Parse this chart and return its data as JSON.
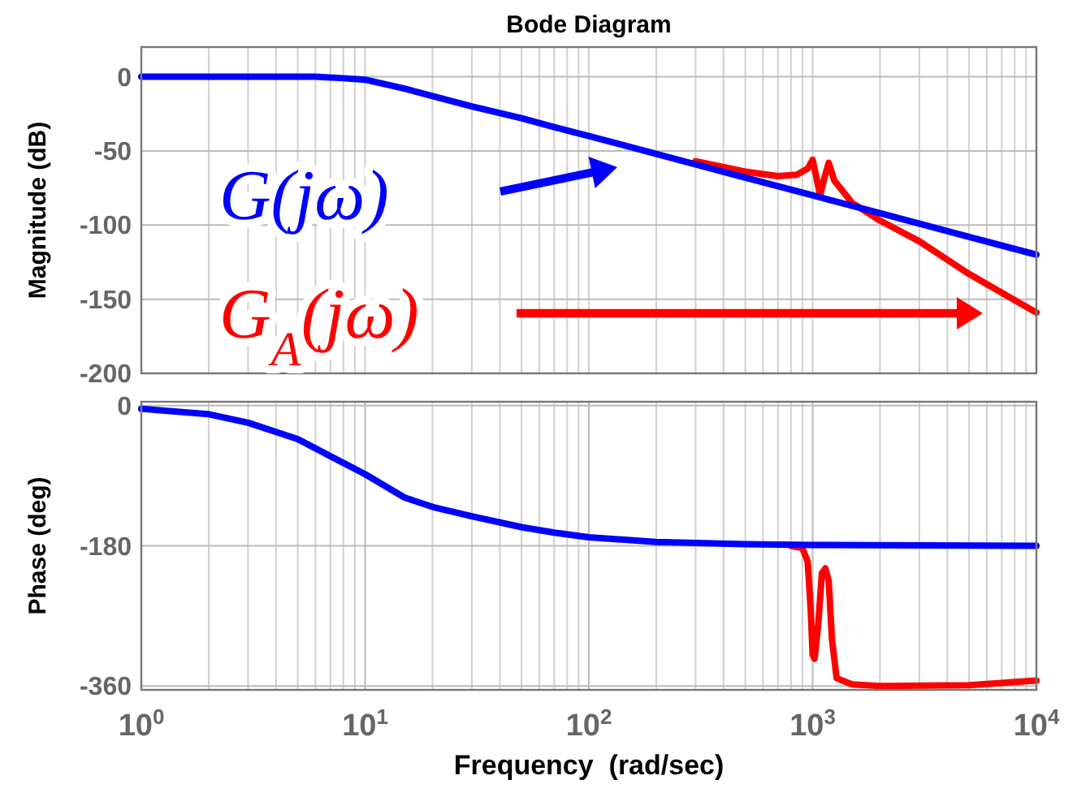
{
  "chart_data": [
    {
      "type": "line",
      "title": "Bode Diagram",
      "ylabel": "Magnitude (dB)",
      "xlim": [
        1,
        10000
      ],
      "ylim": [
        -200,
        20
      ],
      "log": "x",
      "grid": true,
      "tick_labels": "y",
      "yticks": [
        0,
        -50,
        -100,
        -150,
        -200
      ],
      "xticks": [
        {
          "value": 1,
          "label": null
        },
        {
          "value": 2,
          "label": null
        },
        {
          "value": 3,
          "label": null
        },
        {
          "value": 4,
          "label": null
        },
        {
          "value": 5,
          "label": null
        },
        {
          "value": 6,
          "label": null
        },
        {
          "value": 7,
          "label": null
        },
        {
          "value": 8,
          "label": null
        },
        {
          "value": 9,
          "label": null
        },
        {
          "value": 10,
          "label": null
        },
        {
          "value": 20,
          "label": null
        },
        {
          "value": 30,
          "label": null
        },
        {
          "value": 40,
          "label": null
        },
        {
          "value": 50,
          "label": null
        },
        {
          "value": 60,
          "label": null
        },
        {
          "value": 70,
          "label": null
        },
        {
          "value": 80,
          "label": null
        },
        {
          "value": 90,
          "label": null
        },
        {
          "value": 100,
          "label": null
        },
        {
          "value": 200,
          "label": null
        },
        {
          "value": 300,
          "label": null
        },
        {
          "value": 400,
          "label": null
        },
        {
          "value": 500,
          "label": null
        },
        {
          "value": 600,
          "label": null
        },
        {
          "value": 700,
          "label": null
        },
        {
          "value": 800,
          "label": null
        },
        {
          "value": 900,
          "label": null
        },
        {
          "value": 1000,
          "label": null
        },
        {
          "value": 2000,
          "label": null
        },
        {
          "value": 3000,
          "label": null
        },
        {
          "value": 4000,
          "label": null
        },
        {
          "value": 5000,
          "label": null
        },
        {
          "value": 6000,
          "label": null
        },
        {
          "value": 7000,
          "label": null
        },
        {
          "value": 8000,
          "label": null
        },
        {
          "value": 9000,
          "label": null
        },
        {
          "value": 10000,
          "label": null
        }
      ],
      "series": [
        {
          "color": "#0000ff",
          "x": [
            1,
            2,
            4,
            6,
            8,
            10,
            15,
            20,
            30,
            50,
            70,
            100,
            200,
            500,
            1000,
            2000,
            5000,
            10000
          ],
          "values": [
            0,
            0,
            0,
            0,
            -1,
            -2,
            -8,
            -13,
            -20,
            -28,
            -34,
            -40,
            -52,
            -68,
            -80,
            -92,
            -108,
            -120
          ]
        },
        {
          "color": "#ff0000",
          "x": [
            300,
            500,
            700,
            850,
            950,
            1000,
            1040,
            1080,
            1130,
            1180,
            1250,
            1500,
            2000,
            3000,
            5000,
            10000
          ],
          "values": [
            -57,
            -64,
            -67,
            -66,
            -62,
            -56,
            -68,
            -80,
            -68,
            -58,
            -70,
            -85,
            -97,
            -111,
            -133,
            -159
          ]
        }
      ],
      "annotations": [
        "G(jω)",
        "G$_{A}$(jω)"
      ]
    },
    {
      "type": "line",
      "xlabel": "Frequency  (rad/sec)",
      "ylabel": "Phase (deg)",
      "xlim": [
        1,
        10000
      ],
      "ylim": [
        -365,
        5
      ],
      "log": "x",
      "grid": true,
      "yticks": [
        0,
        -180,
        -360
      ],
      "xticks": [
        {
          "value": 1,
          "label": "10$^{0}$"
        },
        {
          "value": 2,
          "label": null
        },
        {
          "value": 3,
          "label": null
        },
        {
          "value": 4,
          "label": null
        },
        {
          "value": 5,
          "label": null
        },
        {
          "value": 6,
          "label": null
        },
        {
          "value": 7,
          "label": null
        },
        {
          "value": 8,
          "label": null
        },
        {
          "value": 9,
          "label": null
        },
        {
          "value": 10,
          "label": "10$^{1}$"
        },
        {
          "value": 20,
          "label": null
        },
        {
          "value": 30,
          "label": null
        },
        {
          "value": 40,
          "label": null
        },
        {
          "value": 50,
          "label": null
        },
        {
          "value": 60,
          "label": null
        },
        {
          "value": 70,
          "label": null
        },
        {
          "value": 80,
          "label": null
        },
        {
          "value": 90,
          "label": null
        },
        {
          "value": 100,
          "label": "10$^{2}$"
        },
        {
          "value": 200,
          "label": null
        },
        {
          "value": 300,
          "label": null
        },
        {
          "value": 400,
          "label": null
        },
        {
          "value": 500,
          "label": null
        },
        {
          "value": 600,
          "label": null
        },
        {
          "value": 700,
          "label": null
        },
        {
          "value": 800,
          "label": null
        },
        {
          "value": 900,
          "label": null
        },
        {
          "value": 1000,
          "label": "10$^{3}$"
        },
        {
          "value": 2000,
          "label": null
        },
        {
          "value": 3000,
          "label": null
        },
        {
          "value": 4000,
          "label": null
        },
        {
          "value": 5000,
          "label": null
        },
        {
          "value": 6000,
          "label": null
        },
        {
          "value": 7000,
          "label": null
        },
        {
          "value": 8000,
          "label": null
        },
        {
          "value": 9000,
          "label": null
        },
        {
          "value": 10000,
          "label": "10$^{4}$"
        }
      ],
      "series": [
        {
          "color": "#0000ff",
          "x": [
            1,
            2,
            3,
            5,
            7,
            10,
            15,
            20,
            30,
            50,
            70,
            100,
            200,
            500,
            1000,
            10000
          ],
          "values": [
            -4,
            -11,
            -22,
            -43,
            -65,
            -88,
            -118,
            -130,
            -142,
            -156,
            -163,
            -169,
            -175,
            -178,
            -179,
            -180
          ]
        },
        {
          "color": "#ff0000",
          "x": [
            800,
            900,
            950,
            980,
            1000,
            1020,
            1060,
            1100,
            1140,
            1180,
            1220,
            1280,
            1500,
            2000,
            5000,
            10000
          ],
          "values": [
            -180,
            -183,
            -200,
            -260,
            -320,
            -325,
            -280,
            -215,
            -209,
            -225,
            -300,
            -350,
            -358,
            -360,
            -359,
            -353
          ]
        }
      ]
    }
  ]
}
